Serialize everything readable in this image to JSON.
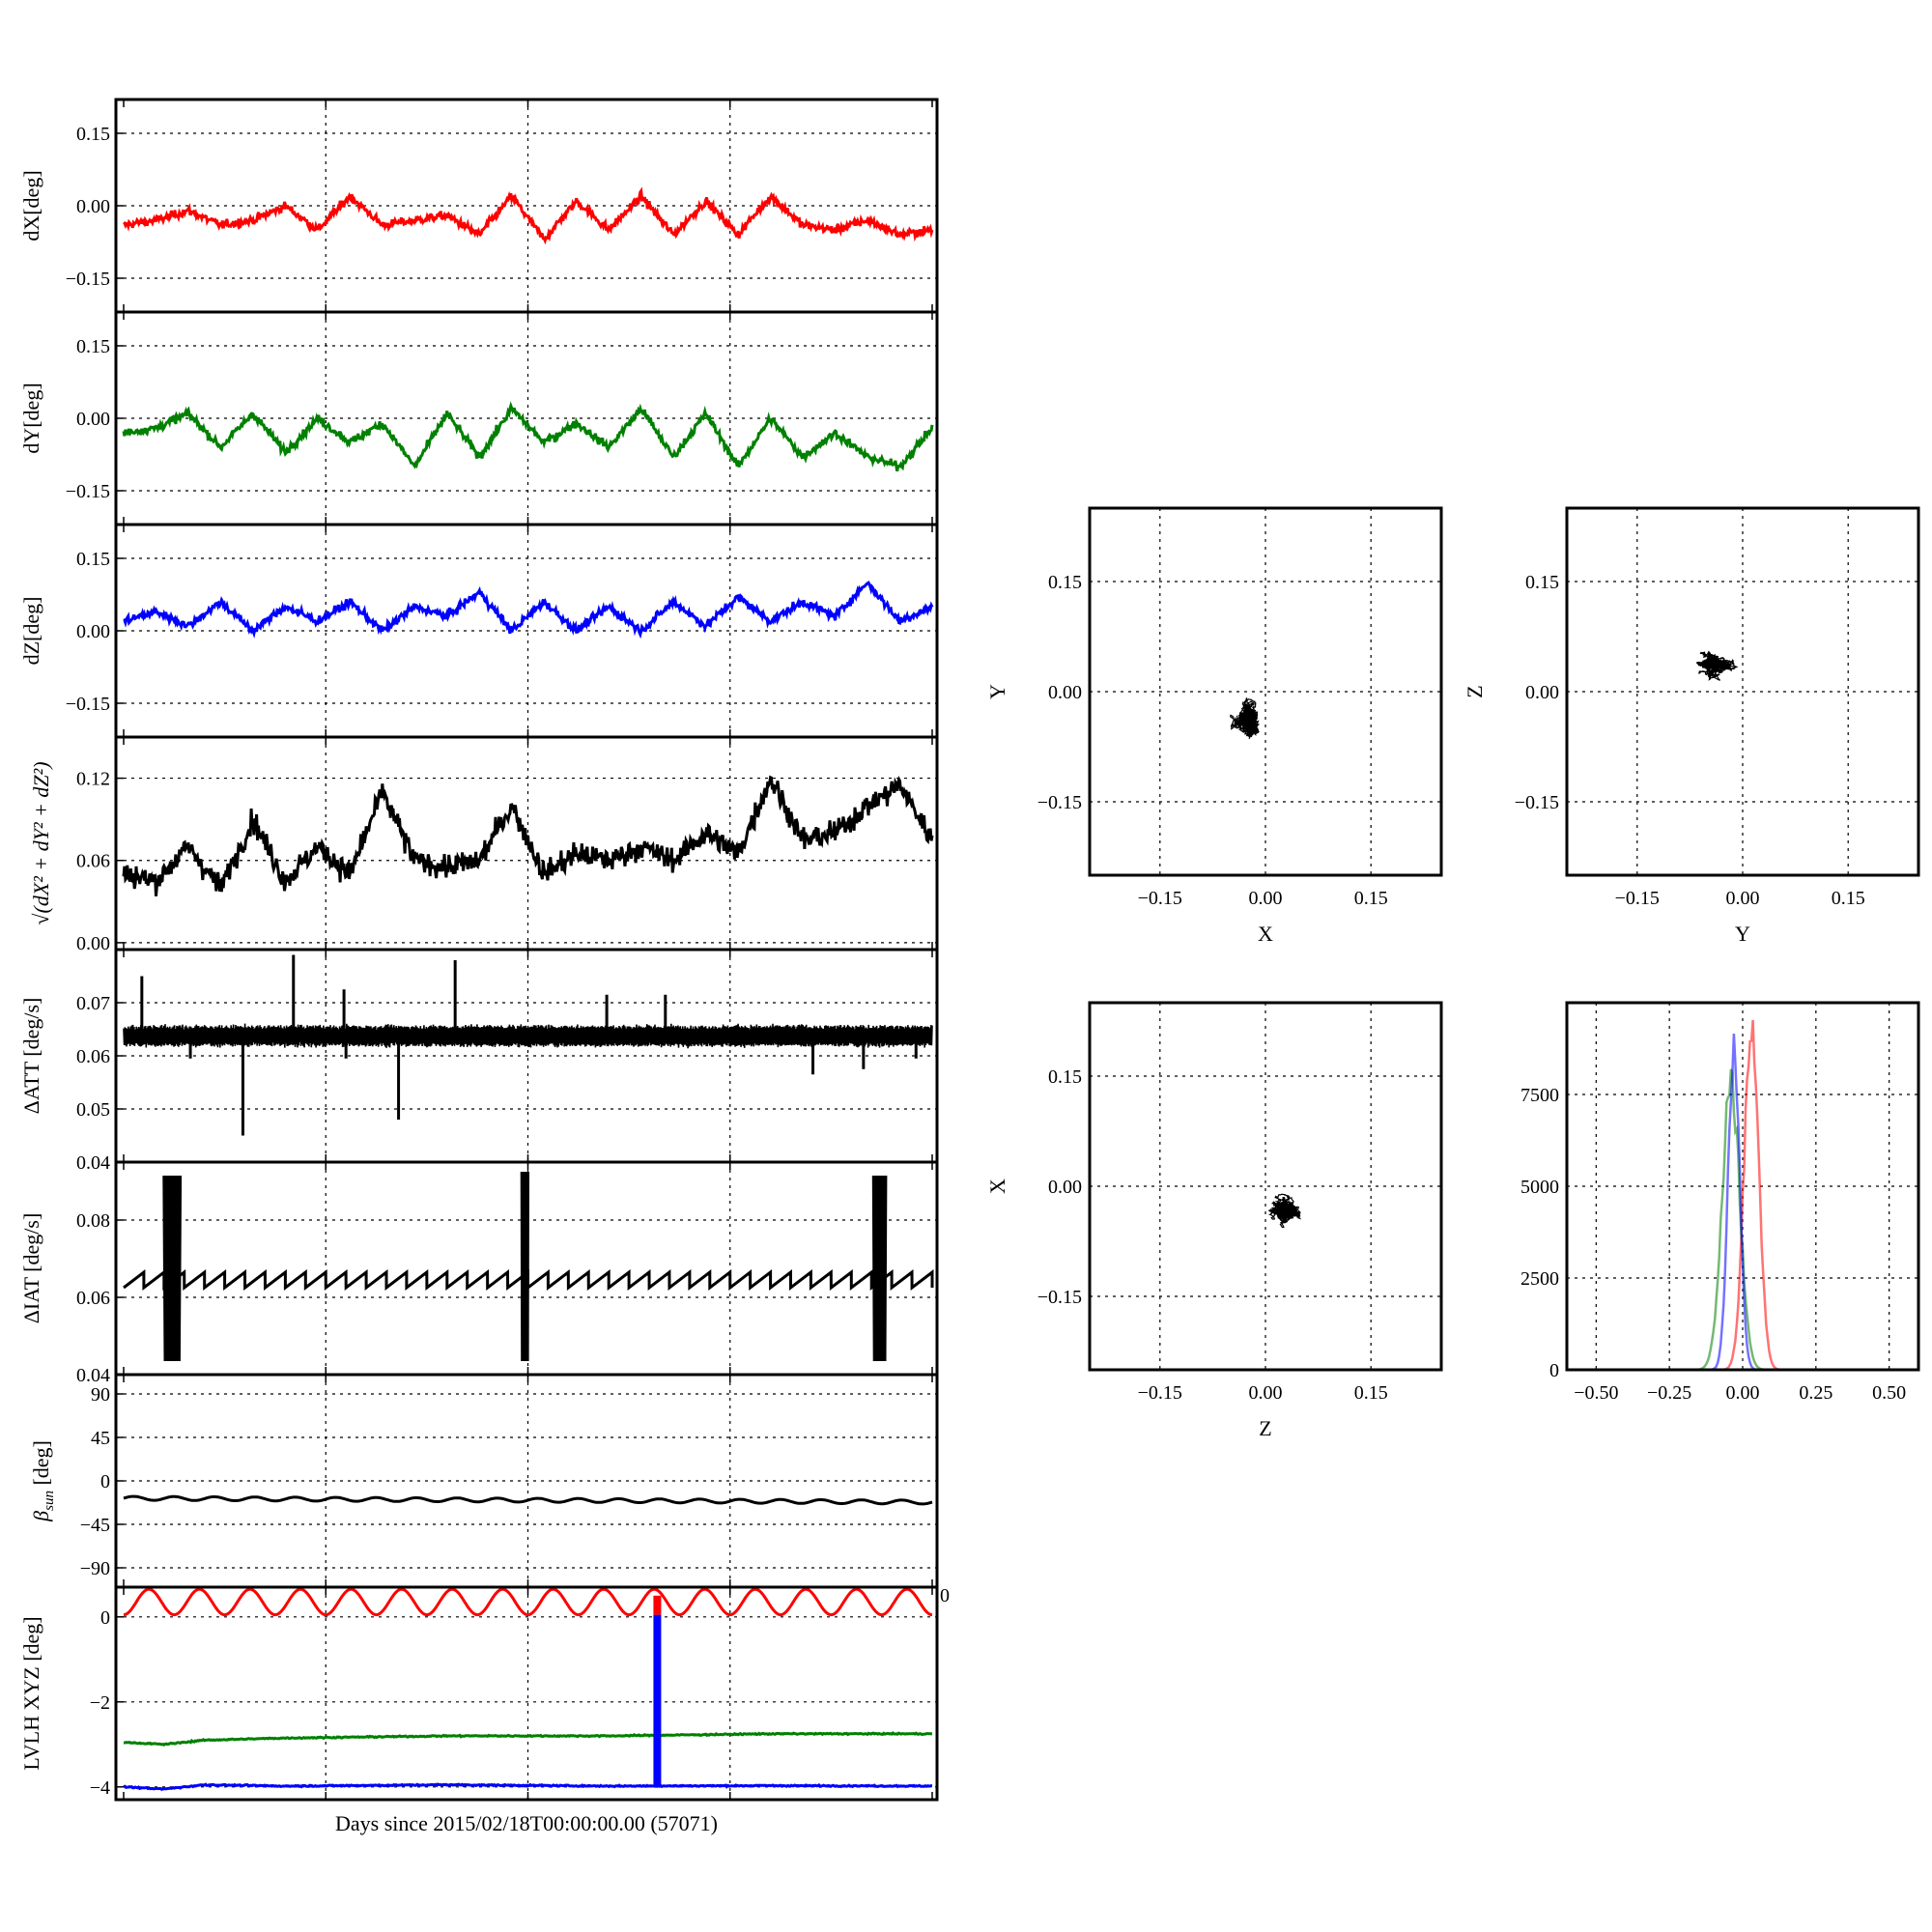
{
  "colors": {
    "x": "#ff0000",
    "y": "#008000",
    "z": "#0000ff",
    "mag": "#000000"
  },
  "left_panels": {
    "xlabel": "Days since 2015/02/18T00:00:00.00 (57071)",
    "xlim": [
      0,
      20
    ],
    "x_gridlines": [
      5,
      10,
      15
    ]
  },
  "chart_data": [
    {
      "type": "line",
      "panel": "dX",
      "ylabel": "dX[deg]",
      "ylim": [
        -0.22,
        0.22
      ],
      "yticks": [
        -0.15,
        0.0,
        0.15
      ],
      "ytick_labels": [
        "−0.15",
        "0.00",
        "0.15"
      ],
      "series": [
        {
          "color": "#ff0000",
          "x": [
            0,
            0.8,
            1.6,
            2.4,
            3.2,
            4.0,
            4.8,
            5.6,
            6.4,
            7.2,
            8.0,
            8.8,
            9.6,
            10.4,
            11.2,
            12.0,
            12.8,
            13.6,
            14.4,
            15.2,
            16.0,
            16.8,
            17.6,
            18.4,
            19.2,
            20
          ],
          "y": [
            -0.04,
            -0.03,
            -0.01,
            -0.04,
            -0.03,
            0.0,
            -0.05,
            0.02,
            -0.04,
            -0.03,
            -0.02,
            -0.06,
            0.02,
            -0.07,
            0.01,
            -0.05,
            0.02,
            -0.06,
            0.01,
            -0.06,
            0.02,
            -0.04,
            -0.05,
            -0.03,
            -0.06,
            -0.05
          ]
        }
      ]
    },
    {
      "type": "line",
      "panel": "dY",
      "ylabel": "dY[deg]",
      "ylim": [
        -0.22,
        0.22
      ],
      "yticks": [
        -0.15,
        0.0,
        0.15
      ],
      "ytick_labels": [
        "−0.15",
        "0.00",
        "0.15"
      ],
      "series": [
        {
          "color": "#008000",
          "x": [
            0,
            0.8,
            1.6,
            2.4,
            3.2,
            4.0,
            4.8,
            5.6,
            6.4,
            7.2,
            8.0,
            8.8,
            9.6,
            10.4,
            11.2,
            12.0,
            12.8,
            13.6,
            14.4,
            15.2,
            16.0,
            16.8,
            17.6,
            18.4,
            19.2,
            20
          ],
          "y": [
            -0.03,
            -0.02,
            0.01,
            -0.06,
            0.01,
            -0.07,
            0.0,
            -0.05,
            -0.01,
            -0.1,
            0.01,
            -0.08,
            0.02,
            -0.05,
            -0.01,
            -0.06,
            0.02,
            -0.08,
            0.01,
            -0.1,
            0.0,
            -0.08,
            -0.03,
            -0.08,
            -0.1,
            -0.02
          ]
        }
      ]
    },
    {
      "type": "line",
      "panel": "dZ",
      "ylabel": "dZ[deg]",
      "ylim": [
        -0.22,
        0.22
      ],
      "yticks": [
        -0.15,
        0.0,
        0.15
      ],
      "ytick_labels": [
        "−0.15",
        "0.00",
        "0.15"
      ],
      "series": [
        {
          "color": "#0000ff",
          "x": [
            0,
            0.8,
            1.6,
            2.4,
            3.2,
            4.0,
            4.8,
            5.6,
            6.4,
            7.2,
            8.0,
            8.8,
            9.6,
            10.4,
            11.2,
            12.0,
            12.8,
            13.6,
            14.4,
            15.2,
            16.0,
            16.8,
            17.6,
            18.4,
            19.2,
            20
          ],
          "y": [
            0.02,
            0.04,
            0.01,
            0.06,
            0.0,
            0.05,
            0.02,
            0.06,
            0.0,
            0.05,
            0.03,
            0.08,
            0.0,
            0.06,
            0.0,
            0.05,
            0.0,
            0.06,
            0.01,
            0.07,
            0.02,
            0.06,
            0.03,
            0.1,
            0.02,
            0.05
          ]
        }
      ]
    },
    {
      "type": "line",
      "panel": "mag",
      "ylabel_tex": "√(dX² + dY² + dZ²)",
      "ylim": [
        -0.005,
        0.15
      ],
      "yticks": [
        0.0,
        0.06,
        0.12
      ],
      "ytick_labels": [
        "0.00",
        "0.06",
        "0.12"
      ],
      "series": [
        {
          "color": "#000000",
          "x": [
            0,
            0.8,
            1.6,
            2.4,
            3.2,
            4.0,
            4.8,
            5.6,
            6.4,
            7.2,
            8.0,
            8.8,
            9.6,
            10.4,
            11.2,
            12.0,
            12.8,
            13.6,
            14.4,
            15.2,
            16.0,
            16.8,
            17.6,
            18.4,
            19.2,
            20
          ],
          "y": [
            0.05,
            0.045,
            0.07,
            0.04,
            0.09,
            0.045,
            0.07,
            0.05,
            0.11,
            0.06,
            0.055,
            0.06,
            0.1,
            0.05,
            0.065,
            0.06,
            0.07,
            0.06,
            0.08,
            0.065,
            0.12,
            0.075,
            0.08,
            0.1,
            0.115,
            0.075
          ]
        }
      ]
    },
    {
      "type": "line",
      "panel": "datt",
      "ylabel": "ΔATT [deg/s]",
      "ylim": [
        0.04,
        0.08
      ],
      "yticks": [
        0.04,
        0.05,
        0.06,
        0.07
      ],
      "ytick_labels": [
        "0.04",
        "0.05",
        "0.06",
        "0.07"
      ],
      "baseline": 0.0645,
      "spikes": [
        {
          "x": 0.45,
          "y": 0.075
        },
        {
          "x": 1.65,
          "y": 0.0595
        },
        {
          "x": 2.95,
          "y": 0.045
        },
        {
          "x": 4.2,
          "y": 0.079
        },
        {
          "x": 5.45,
          "y": 0.0725
        },
        {
          "x": 5.5,
          "y": 0.0595
        },
        {
          "x": 6.8,
          "y": 0.048
        },
        {
          "x": 8.2,
          "y": 0.078
        },
        {
          "x": 11.95,
          "y": 0.0715
        },
        {
          "x": 13.4,
          "y": 0.0715
        },
        {
          "x": 17.05,
          "y": 0.0565
        },
        {
          "x": 18.3,
          "y": 0.0575
        },
        {
          "x": 19.6,
          "y": 0.0595
        }
      ]
    },
    {
      "type": "line",
      "panel": "diat",
      "ylabel": "ΔIAT [deg/s]",
      "ylim": [
        0.04,
        0.095
      ],
      "yticks": [
        0.04,
        0.06,
        0.08
      ],
      "ytick_labels": [
        "0.04",
        "0.06",
        "0.08"
      ],
      "sawtooth": {
        "low": 0.0625,
        "high": 0.0665,
        "period_days": 0.5
      },
      "bursts": [
        {
          "x_start": 1.0,
          "x_end": 1.4,
          "low": 0.0435,
          "high": 0.0915
        },
        {
          "x_start": 9.85,
          "x_end": 10.0,
          "low": 0.0435,
          "high": 0.0925
        },
        {
          "x_start": 18.55,
          "x_end": 18.85,
          "low": 0.0435,
          "high": 0.0915
        }
      ]
    },
    {
      "type": "line",
      "panel": "beta",
      "ylabel_tex": "β_sun [deg]",
      "ylim": [
        -110,
        110
      ],
      "yticks": [
        -90,
        -45,
        0,
        45,
        90
      ],
      "ytick_labels": [
        "−90",
        "−45",
        "0",
        "45",
        "90"
      ],
      "series": [
        {
          "color": "#000000",
          "start": -18,
          "end": -22,
          "amplitude": 2,
          "period_days": 1.0
        }
      ]
    },
    {
      "type": "line",
      "panel": "lvlh",
      "ylabel": "LVLH XYZ [deg]",
      "ylim": [
        -4.3,
        0.7
      ],
      "yticks": [
        -4,
        -2,
        0
      ],
      "ytick_labels": [
        "−4",
        "−2",
        "0"
      ],
      "overflow_tick_label": "0",
      "series": [
        {
          "color": "#ff0000",
          "center": 0.35,
          "amplitude": 0.3,
          "period_days": 1.25
        },
        {
          "color": "#008000",
          "values_x": [
            0,
            1,
            2,
            4,
            8,
            12,
            16,
            20
          ],
          "values_y": [
            -2.95,
            -3.0,
            -2.9,
            -2.85,
            -2.8,
            -2.8,
            -2.75,
            -2.75
          ]
        },
        {
          "color": "#0000ff",
          "values_x": [
            0,
            1,
            2,
            4,
            8,
            12,
            16,
            20
          ],
          "values_y": [
            -4.0,
            -4.05,
            -3.95,
            -3.98,
            -3.95,
            -3.98,
            -3.97,
            -3.98
          ]
        }
      ],
      "event": {
        "x": 13.2,
        "y_top": 0.05,
        "y_bottom": -4.0
      }
    },
    {
      "type": "scatter",
      "panel": "xy",
      "xlabel": "X",
      "ylabel": "Y",
      "xlim": [
        -0.25,
        0.25
      ],
      "ylim": [
        -0.25,
        0.25
      ],
      "ticks": [
        -0.15,
        0.0,
        0.15
      ],
      "tick_labels": [
        "−0.15",
        "0.00",
        "0.15"
      ],
      "cloud": {
        "center": [
          -0.02,
          -0.04
        ],
        "spread": [
          0.022,
          0.03
        ]
      }
    },
    {
      "type": "scatter",
      "panel": "yz",
      "xlabel": "Y",
      "ylabel": "Z",
      "xlim": [
        -0.25,
        0.25
      ],
      "ylim": [
        -0.25,
        0.25
      ],
      "ticks": [
        -0.15,
        0.0,
        0.15
      ],
      "tick_labels": [
        "−0.15",
        "0.00",
        "0.15"
      ],
      "cloud": {
        "center": [
          -0.04,
          0.04
        ],
        "spread": [
          0.03,
          0.018
        ]
      }
    },
    {
      "type": "scatter",
      "panel": "zx",
      "xlabel": "Z",
      "ylabel": "X",
      "xlim": [
        -0.25,
        0.25
      ],
      "ylim": [
        -0.25,
        0.25
      ],
      "ticks": [
        -0.15,
        0.0,
        0.15
      ],
      "tick_labels": [
        "−0.15",
        "0.00",
        "0.15"
      ],
      "cloud": {
        "center": [
          0.03,
          -0.03
        ],
        "spread": [
          0.025,
          0.02
        ]
      }
    },
    {
      "type": "bar",
      "panel": "hist",
      "xlim": [
        -0.6,
        0.6
      ],
      "ylim": [
        0,
        10000
      ],
      "xticks": [
        -0.5,
        -0.25,
        0.0,
        0.25,
        0.5
      ],
      "xtick_labels": [
        "−0.50",
        "−0.25",
        "0.00",
        "0.25",
        "0.50"
      ],
      "yticks": [
        0,
        2500,
        5000,
        7500
      ],
      "ytick_labels": [
        "0",
        "2500",
        "5000",
        "7500"
      ],
      "series": [
        {
          "color": "#ff0000",
          "center": 0.03,
          "width": 0.025,
          "peak": 9500
        },
        {
          "color": "#008000",
          "center": -0.04,
          "width": 0.03,
          "peak": 7800
        },
        {
          "color": "#0000ff",
          "center": -0.03,
          "width": 0.02,
          "peak": 8700
        }
      ]
    }
  ]
}
